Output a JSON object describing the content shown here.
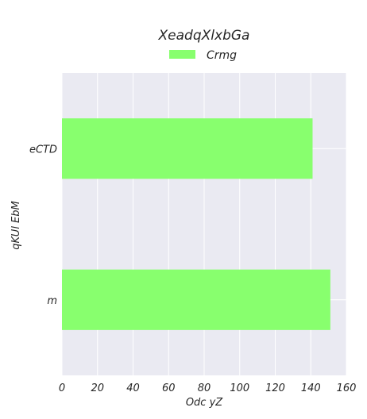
{
  "chart_data": {
    "type": "bar",
    "orientation": "horizontal",
    "title": "XeadqXlxbGa",
    "xlabel": "Odc   yZ",
    "ylabel": "qKUl EbM",
    "categories": [
      "eCTD",
      "m"
    ],
    "series": [
      {
        "name": "Crmg",
        "values": [
          141,
          151
        ],
        "color": "#88ff6e"
      }
    ],
    "xlim": [
      0,
      160
    ],
    "x_ticks": [
      0,
      20,
      40,
      60,
      80,
      100,
      120,
      140,
      160
    ],
    "grid": true,
    "legend_position": "top-center",
    "background_color": "#eaeaf2"
  }
}
